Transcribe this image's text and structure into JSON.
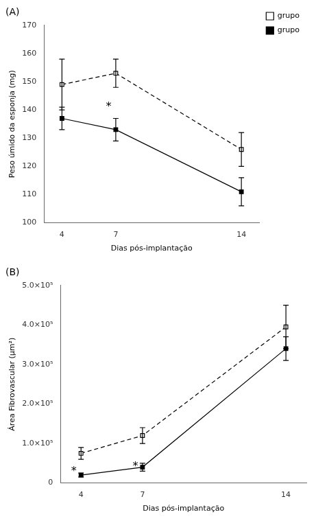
{
  "chart_data": [
    {
      "type": "line",
      "title": "(A)",
      "xlabel": "Dias pós-implantação",
      "ylabel": "Peso úmido da esponja (mg)",
      "x": [
        4,
        7,
        14
      ],
      "xlim": [
        3,
        15
      ],
      "xticks": [
        4,
        7,
        14
      ],
      "ylim": [
        100,
        170
      ],
      "yticks": [
        100,
        110,
        120,
        130,
        140,
        150,
        160,
        170
      ],
      "grid": false,
      "legend": "right",
      "series": [
        {
          "name": "grupo",
          "color": "#000000",
          "line_style": "dashed",
          "marker": "square_open",
          "values": [
            149,
            153,
            126
          ],
          "errors": [
            9,
            5,
            6
          ]
        },
        {
          "name": "grupo",
          "color": "#000000",
          "line_style": "solid",
          "marker": "square",
          "values": [
            137,
            133,
            111
          ],
          "errors": [
            4,
            4,
            5
          ]
        }
      ],
      "annotations": [
        {
          "text": "*",
          "x": 6.6,
          "y": 139
        }
      ]
    },
    {
      "type": "line",
      "title": "(B)",
      "xlabel": "Dias pós-implantação",
      "ylabel": "Área Fibrovascular (μm²)",
      "x": [
        4,
        7,
        14
      ],
      "xlim": [
        3,
        15
      ],
      "xticks": [
        4,
        7,
        14
      ],
      "ylim": [
        0,
        500000
      ],
      "yticks": [
        0,
        {
          "value": 100000,
          "label": "1.0×10⁵"
        },
        {
          "value": 200000,
          "label": "2.0×10⁵"
        },
        {
          "value": 300000,
          "label": "3.0×10⁵"
        },
        {
          "value": 400000,
          "label": "4.0×10⁵"
        },
        {
          "value": 500000,
          "label": "5.0×10⁵"
        }
      ],
      "grid": false,
      "series": [
        {
          "name": "grupo",
          "color": "#000000",
          "line_style": "dashed",
          "marker": "square_open",
          "values": [
            75000,
            120000,
            395000
          ],
          "errors": [
            15000,
            20000,
            55000
          ]
        },
        {
          "name": "grupo",
          "color": "#000000",
          "line_style": "solid",
          "marker": "square",
          "values": [
            20000,
            40000,
            340000
          ],
          "errors": [
            5000,
            10000,
            30000
          ]
        }
      ],
      "annotations": [
        {
          "text": "*",
          "x": 3.65,
          "y": 15000
        },
        {
          "text": "*",
          "x": 6.65,
          "y": 28000
        }
      ]
    }
  ]
}
